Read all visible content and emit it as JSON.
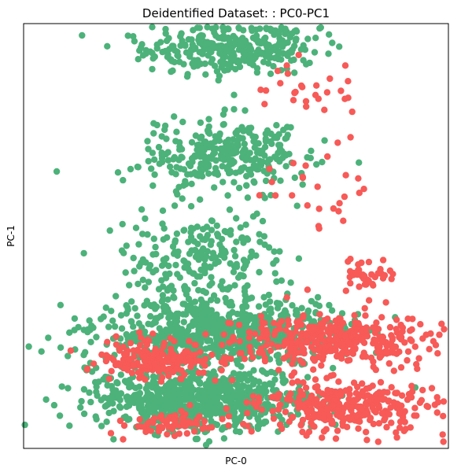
{
  "chart_data": {
    "type": "scatter",
    "title": "Deidentified Dataset: : PC0-PC1",
    "xlabel": "PC-0",
    "ylabel": "PC-1",
    "xlim": [
      0,
      10
    ],
    "ylim": [
      0,
      10
    ],
    "ticks_visible": false,
    "grid": false,
    "legend": "none",
    "series": [
      {
        "color": "#4cb27a",
        "clusters": [
          {
            "cx": 4.9,
            "cy": 9.4,
            "sx": 1.35,
            "sy": 0.28,
            "n": 330,
            "spread_x": "wide"
          },
          {
            "cx": 4.7,
            "cy": 6.9,
            "sx": 1.3,
            "sy": 0.45,
            "n": 320
          },
          {
            "cx": 4.2,
            "cy": 4.4,
            "sx": 1.3,
            "sy": 0.55,
            "n": 220
          },
          {
            "cx": 4.6,
            "cy": 2.7,
            "sx": 1.9,
            "sy": 0.4,
            "n": 780
          },
          {
            "cx": 4.2,
            "cy": 1.15,
            "sx": 1.75,
            "sy": 0.35,
            "n": 720
          }
        ]
      },
      {
        "color": "#f75a57",
        "clusters": [
          {
            "cx": 6.6,
            "cy": 8.5,
            "sx": 0.9,
            "sy": 0.35,
            "n": 28
          },
          {
            "cx": 7.2,
            "cy": 6.2,
            "sx": 1.0,
            "sy": 0.5,
            "n": 26
          },
          {
            "cx": 8.1,
            "cy": 4.1,
            "sx": 0.45,
            "sy": 0.2,
            "n": 40
          },
          {
            "cx": 7.3,
            "cy": 2.6,
            "sx": 1.45,
            "sy": 0.3,
            "n": 330
          },
          {
            "cx": 3.3,
            "cy": 2.1,
            "sx": 1.05,
            "sy": 0.22,
            "n": 190
          },
          {
            "cx": 7.6,
            "cy": 0.95,
            "sx": 1.35,
            "sy": 0.3,
            "n": 330
          },
          {
            "cx": 3.5,
            "cy": 0.6,
            "sx": 0.9,
            "sy": 0.15,
            "n": 70
          }
        ]
      }
    ]
  }
}
